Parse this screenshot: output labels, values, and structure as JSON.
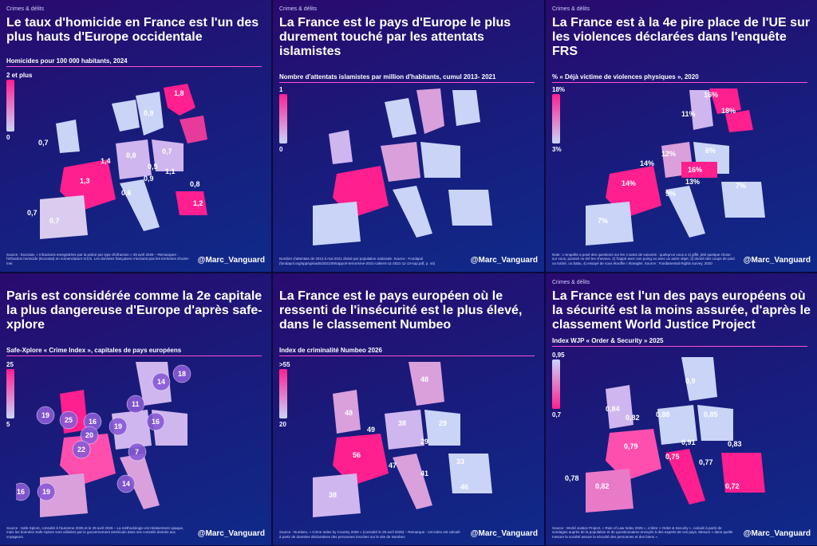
{
  "panels": [
    {
      "category": "Crimes & délits",
      "title": "Le taux d'homicide en France est l'un des plus hauts d'Europe occidentale",
      "subtitle": "Homicides pour 100 000 habitants, 2024",
      "legend_top": "2 et plus",
      "legend_bottom": "0",
      "values": [
        "1,8",
        "0,9",
        "0,7",
        "0,8",
        "0,7",
        "1,4",
        "0,5",
        "1,1",
        "1,3",
        "0,9",
        "0,8",
        "0,7",
        "0,7",
        "0,6",
        "1,2"
      ],
      "source": "Source : Eurostat, « Infractions enregistrées par la police par type d'infraction » 29 avril 2026 – Remarques : l'infraction homicide (Eurostat) en nomenclature ICCS. Les données françaises n'incluent pas les territoires d'outre-mer.",
      "signature": "@Marc_Vanguard"
    },
    {
      "category": "Crimes & délits",
      "title": "La France est le pays d'Europe le plus durement touché par les attentats islamistes",
      "subtitle": "Nombre d'attentats islamistes par million d'habitants, cumul 2013- 2021",
      "legend_top": "1",
      "legend_bottom": "0",
      "source": "Nombre d'attentats de 2013 à mai 2021 divisé par population nationale. Source : Fondapol (fondapol.org/app/uploads/2021/09/rapport-terrorisme-2021-cahiers-11-2021-11-13-sup.pdf, p. 44)",
      "signature": "@Marc_Vanguard"
    },
    {
      "category": "Crimes & délits",
      "title": "La France est à la 4e pire place de l'UE sur les violences déclarées dans l'enquête FRS",
      "subtitle": "% « Déjà victime de violences physiques », 2020",
      "legend_top": "18%",
      "legend_bottom": "3%",
      "values": [
        "16%",
        "11%",
        "18%",
        "12%",
        "6%",
        "14%",
        "16%",
        "14%",
        "13%",
        "7%",
        "9%",
        "7%"
      ],
      "source": "Note : L'enquête a posé des questions sur les 4 actes de suivants : quelqu'un vous a 1) giflé, jeté quelque chose sur vous, poussé ou tiré les cheveux, 2) frappé avec son poing ou avec un autre objet, 3) donné des coups de pied ou traîné, ou battu, 4) essayé de vous étouffer / étrangler. Source : Fundamental Rights survey, 2020",
      "signature": "@Marc_Vanguard"
    },
    {
      "category": "",
      "title": "Paris est considérée comme la 2e capitale la plus dangereuse d'Europe d'après safe-xplore",
      "subtitle": "Safe-Xplore « Crime Index », capitales de pays européens",
      "legend_top": "25",
      "legend_bottom": "5",
      "values": [
        "14",
        "18",
        "11",
        "19",
        "25",
        "16",
        "19",
        "16",
        "20",
        "22",
        "7",
        "16",
        "19",
        "14"
      ],
      "source": "Source : Safe-Xplore, consulté à l'automne 2025 et le 29 avril 2026 – La méthodologie est relativement opaque, mais les données Safe-Xplore sont utilisées par le gouvernement américain dans ses conseils donnés aux voyageurs.",
      "signature": "@Marc_Vanguard"
    },
    {
      "category": "",
      "title": "La France est le pays européen où le ressenti de l'insécurité est le plus élevé, dans le classement Numbeo",
      "subtitle": "Index de criminalité Numbeo 2026",
      "legend_top": ">55",
      "legend_bottom": "20",
      "values": [
        "48",
        "48",
        "38",
        "29",
        "49",
        "56",
        "29",
        "47",
        "33",
        "41",
        "38",
        "46"
      ],
      "source": "Source : Numbeo, « Crime Index by Country 2026 » (consulté le 29 avril 2026) – Remarque : cet index est calculé à partir de données déclaratives des personnes inscrites sur le site de Numbeo",
      "signature": "@Marc_Vanguard"
    },
    {
      "category": "Crimes & délits",
      "title": "La France est l'un des pays européens où la sécurité est la moins assurée, d'après le classement World Justice Project",
      "subtitle": "Index WJP « Order & Security » 2025",
      "legend_top": "0,95",
      "legend_bottom": "0,7",
      "values": [
        "0,9",
        "0,82",
        "0,84",
        "0,88",
        "0,85",
        "0,79",
        "0,91",
        "0,83",
        "0,75",
        "0,77",
        "0,78",
        "0,82",
        "0,72"
      ],
      "source": "Source : World Justice Project, « Rule of Law Index 2025 », critère « Order & Security », calculé à partir de sondages auprès de la population et de questionnaires envoyés à des experts de ces pays. Mesure « dans quelle mesure la société assure la sécurité des personnes et des biens ».",
      "signature": "@Marc_Vanguard"
    }
  ],
  "colors": {
    "hot": "#ff1f8e",
    "mid": "#d88ad8",
    "cool": "#c9d4f6",
    "accent": "#ff4fd1"
  }
}
